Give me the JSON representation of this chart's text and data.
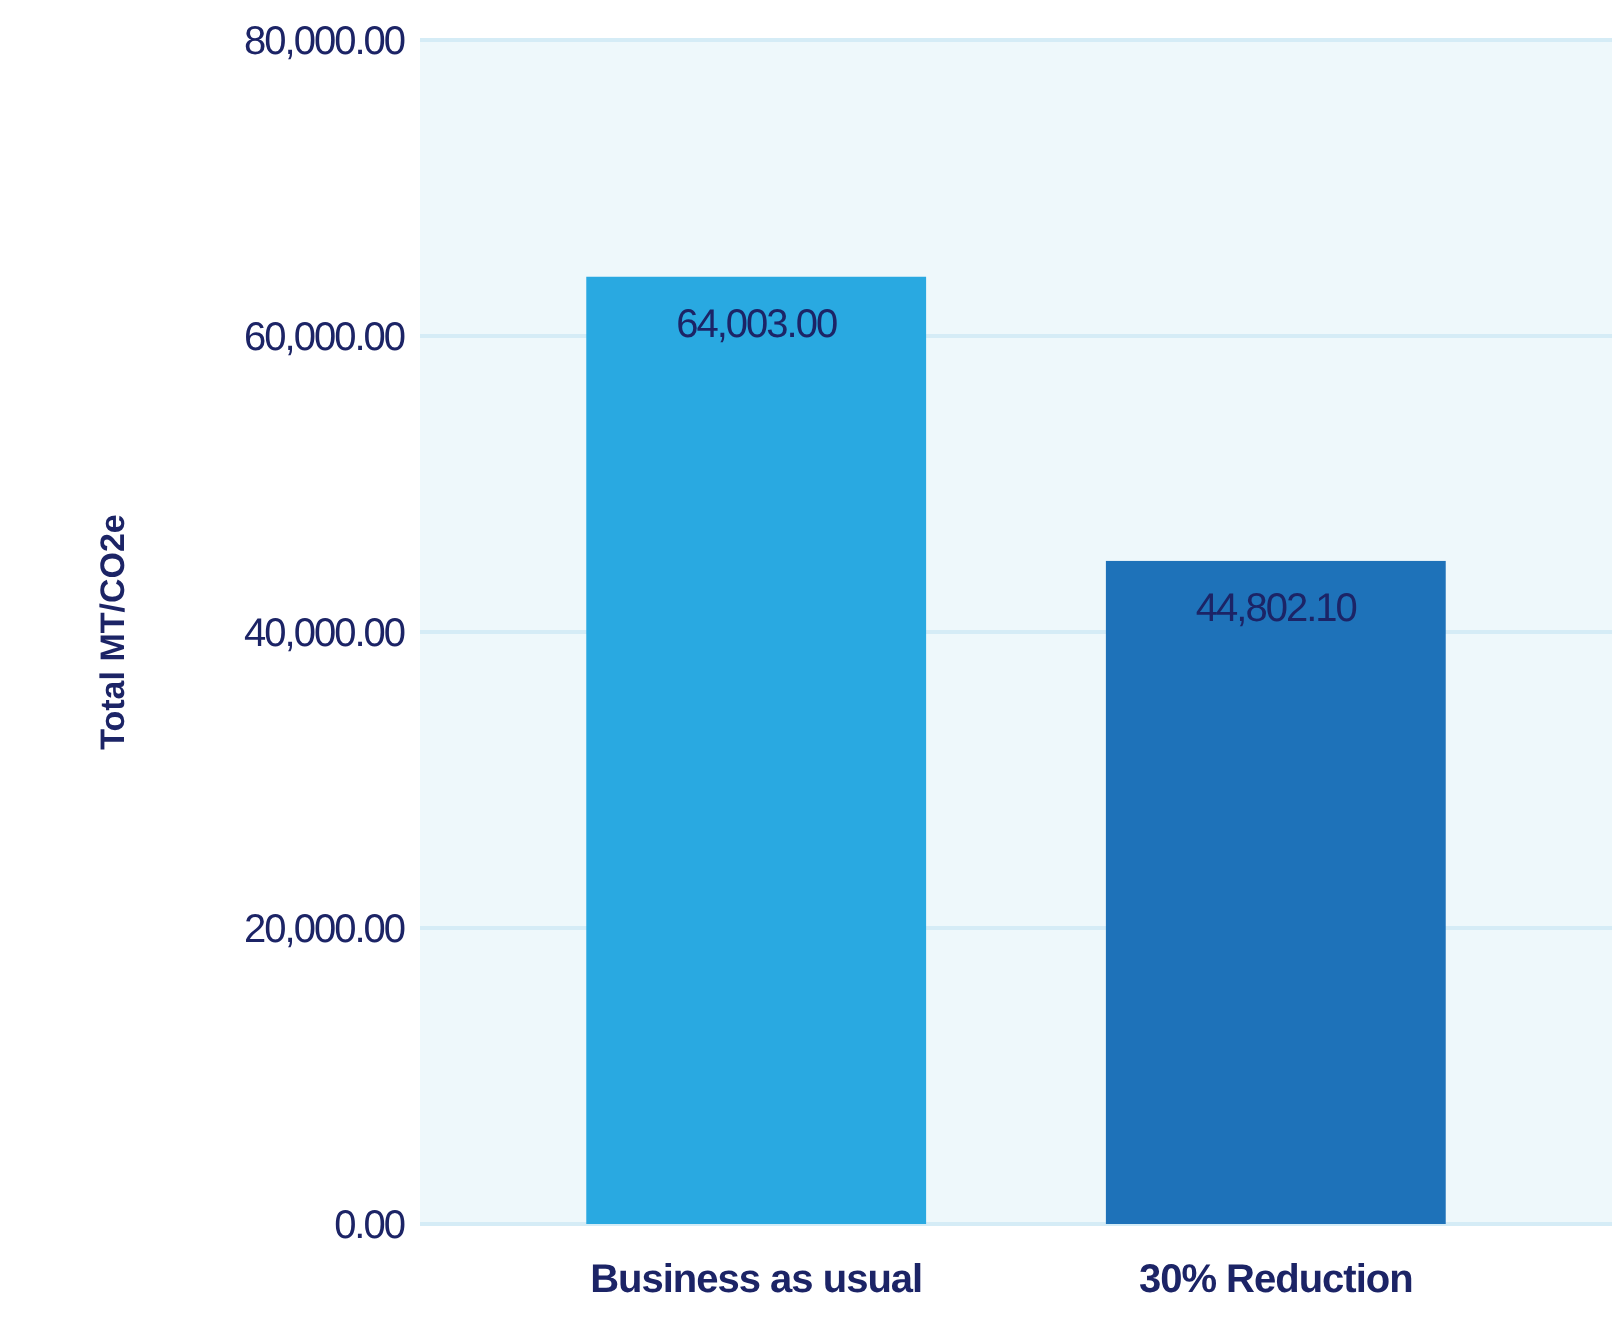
{
  "chart_data": {
    "type": "bar",
    "ylabel": "Total MT/CO2e",
    "categories": [
      "Business as usual",
      "30% Reduction"
    ],
    "values": [
      64003,
      44802.1
    ],
    "colors": [
      "#29a9e1",
      "#1e72b9"
    ],
    "value_labels": [
      "64,003.00",
      "44,802.10"
    ],
    "ylim": [
      0,
      80000
    ],
    "yticks": [
      {
        "value": 0,
        "label": "0.00"
      },
      {
        "value": 20000,
        "label": "20,000.00"
      },
      {
        "value": 40000,
        "label": "40,000.00"
      },
      {
        "value": 60000,
        "label": "60,000.00"
      },
      {
        "value": 80000,
        "label": "80,000.00"
      }
    ],
    "grid": "y"
  }
}
